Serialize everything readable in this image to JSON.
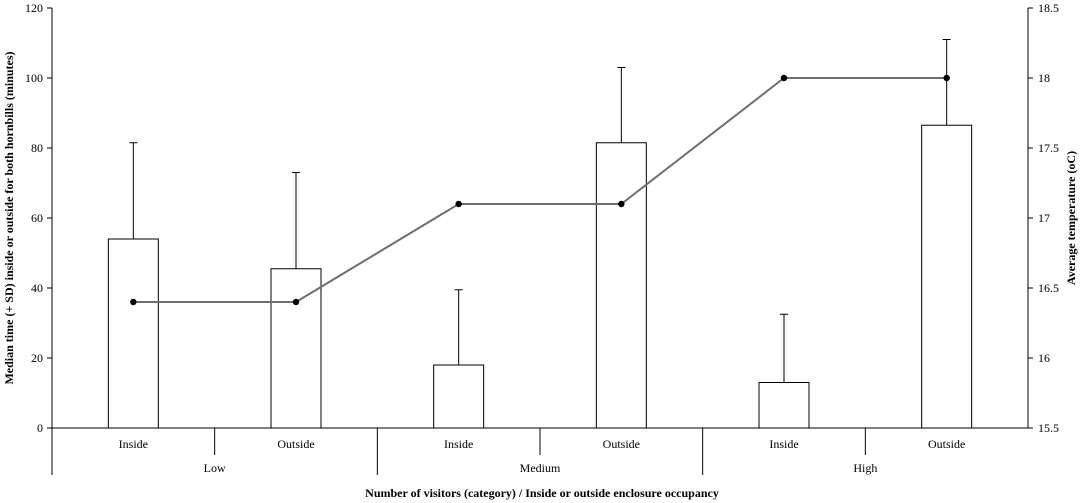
{
  "chart_data": {
    "type": "bar",
    "xlabel": "Number of visitors (category) / Inside or outside enclosure occupancy",
    "ylabel": "Median time (+ SD) inside or outside for both hornbills (minutes)",
    "y2label": "Average temperature (oC)",
    "ylim": [
      0,
      120
    ],
    "y2lim": [
      15.5,
      18.5
    ],
    "yticks": [
      "0",
      "20",
      "40",
      "60",
      "80",
      "100",
      "120"
    ],
    "y2ticks": [
      "15.5",
      "16",
      "16.5",
      "17",
      "17.5",
      "18",
      "18.5"
    ],
    "groups": [
      "Low",
      "Medium",
      "High"
    ],
    "categories": [
      "Inside",
      "Outside",
      "Inside",
      "Outside",
      "Inside",
      "Outside"
    ],
    "bars": {
      "values": [
        54,
        45.5,
        18,
        81.5,
        13,
        86.5
      ],
      "sd_upper": [
        81.5,
        73,
        39.5,
        103,
        32.5,
        111
      ],
      "fill": "#ffffff",
      "stroke": "#000000"
    },
    "line": {
      "values": [
        16.4,
        16.4,
        17.1,
        17.1,
        18.0,
        18.0
      ],
      "color": "#6e6e6e",
      "marker_color": "#000000"
    },
    "grid": false,
    "legend": "none"
  }
}
